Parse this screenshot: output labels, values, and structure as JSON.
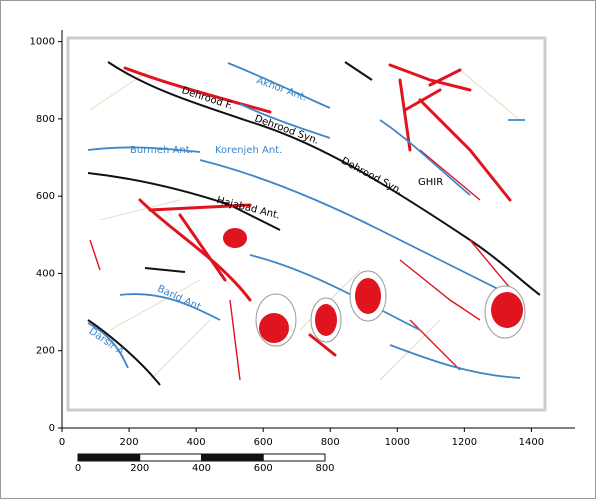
{
  "axes": {
    "xticks": [
      0,
      200,
      400,
      600,
      800,
      1000,
      1200,
      1400
    ],
    "xlim": [
      0,
      1530
    ],
    "yticks": [
      0,
      200,
      400,
      600,
      800,
      1000
    ],
    "ylim": [
      0,
      1030
    ]
  },
  "labels": [
    "Dehrood F.",
    "Akhor Ant.",
    "Dehrood Syn.",
    "Burmeh Ant.",
    "Korenjeh Ant.",
    "Dehrood Syn.",
    "GHIR",
    "Hajabad Ant.",
    "Barid Ant.",
    "Darsir A."
  ],
  "scale_bar": [
    0,
    200,
    400,
    600,
    800
  ]
}
